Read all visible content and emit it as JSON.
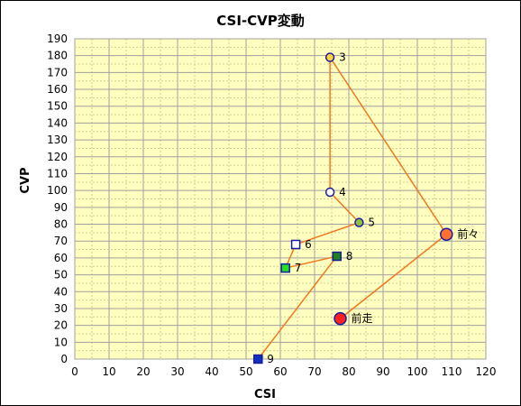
{
  "chart_data": {
    "type": "scatter",
    "title": "CSI-CVP変動",
    "xlabel": "CSI",
    "ylabel": "CVP",
    "xlim": [
      0,
      120
    ],
    "ylim": [
      0,
      190
    ],
    "x_ticks": [
      0,
      10,
      20,
      30,
      40,
      50,
      60,
      70,
      80,
      90,
      100,
      110,
      120
    ],
    "y_ticks": [
      0,
      10,
      20,
      30,
      40,
      50,
      60,
      70,
      80,
      90,
      100,
      110,
      120,
      130,
      140,
      150,
      160,
      170,
      180,
      190
    ],
    "grid": true,
    "plot_background": "#ffffc0",
    "line_color": "#f07820",
    "points": [
      {
        "label": "前走",
        "x": 77.5,
        "y": 24,
        "marker": "circle-large",
        "fill": "#ff2020",
        "stroke": "#1a1aa0"
      },
      {
        "label": "前々",
        "x": 108.5,
        "y": 74,
        "marker": "circle-large",
        "fill": "#ff7030",
        "stroke": "#1a1aa0"
      },
      {
        "label": "3",
        "x": 74.5,
        "y": 179,
        "marker": "circle",
        "fill": "#ffd040",
        "stroke": "#1a1aa0"
      },
      {
        "label": "4",
        "x": 74.5,
        "y": 99,
        "marker": "circle",
        "fill": "#ffffff",
        "stroke": "#1a1aa0"
      },
      {
        "label": "5",
        "x": 83,
        "y": 81,
        "marker": "circle",
        "fill": "#90c040",
        "stroke": "#1a1aa0"
      },
      {
        "label": "6",
        "x": 64.5,
        "y": 68,
        "marker": "square",
        "fill": "#ffffff",
        "stroke": "#1a1aa0"
      },
      {
        "label": "7",
        "x": 61.5,
        "y": 54,
        "marker": "square",
        "fill": "#20e020",
        "stroke": "#1a1aa0"
      },
      {
        "label": "8",
        "x": 76.5,
        "y": 61,
        "marker": "square",
        "fill": "#208020",
        "stroke": "#1a1aa0"
      },
      {
        "label": "9",
        "x": 53.5,
        "y": 0,
        "marker": "square",
        "fill": "#1030c0",
        "stroke": "#1a1aa0"
      }
    ]
  }
}
